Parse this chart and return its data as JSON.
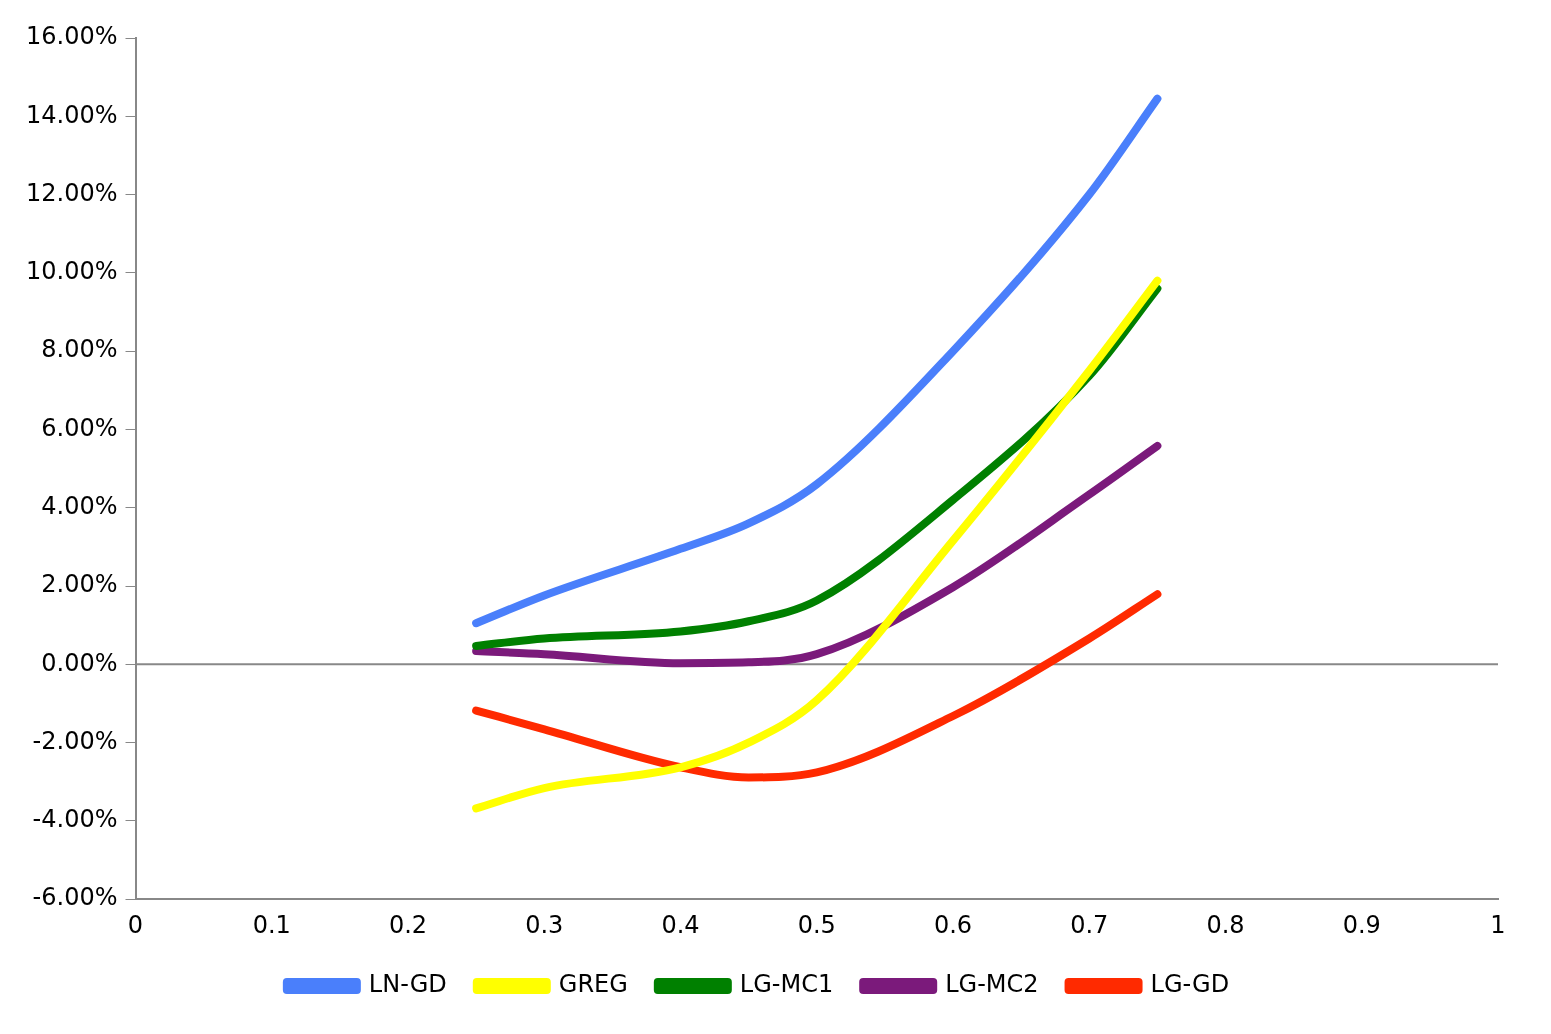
{
  "chart_data": {
    "type": "line",
    "x": [
      0.25,
      0.3,
      0.4,
      0.45,
      0.5,
      0.6,
      0.7,
      0.75
    ],
    "series": [
      {
        "name": "LN-GD",
        "color": "#4a7ffb",
        "values": [
          1.05,
          1.76,
          2.95,
          3.6,
          4.6,
          8.0,
          12.0,
          14.45
        ]
      },
      {
        "name": "GREG",
        "color": "#ffff00",
        "values": [
          -3.68,
          -3.16,
          -2.63,
          -2.0,
          -0.92,
          3.16,
          7.5,
          9.8
        ]
      },
      {
        "name": "LG-MC1",
        "color": "#008000",
        "values": [
          0.47,
          0.66,
          0.84,
          1.1,
          1.63,
          4.2,
          7.37,
          9.6
        ]
      },
      {
        "name": "LG-MC2",
        "color": "#7b1a7b",
        "values": [
          0.34,
          0.26,
          0.03,
          0.05,
          0.26,
          1.97,
          4.34,
          5.58
        ]
      },
      {
        "name": "LG-GD",
        "color": "#ff2a00",
        "values": [
          -1.18,
          -1.66,
          -2.63,
          -2.89,
          -2.76,
          -1.32,
          0.66,
          1.79
        ]
      }
    ],
    "xlim": [
      0,
      1
    ],
    "xticks": [
      0,
      0.1,
      0.2,
      0.3,
      0.4,
      0.5,
      0.6,
      0.7,
      0.8,
      0.9,
      1
    ],
    "ylim": [
      -6,
      16
    ],
    "yticks": [
      {
        "value": -6,
        "label": "-6.00%"
      },
      {
        "value": -4,
        "label": "-4.00%"
      },
      {
        "value": -2,
        "label": "-2.00%"
      },
      {
        "value": 0,
        "label": "0.00%"
      },
      {
        "value": 2,
        "label": "2.00%"
      },
      {
        "value": 4,
        "label": "4.00%"
      },
      {
        "value": 6,
        "label": "6.00%"
      },
      {
        "value": 8,
        "label": "8.00%"
      },
      {
        "value": 10,
        "label": "10.00%"
      },
      {
        "value": 12,
        "label": "12.00%"
      },
      {
        "value": 14,
        "label": "14.00%"
      },
      {
        "value": 16,
        "label": "16.00%"
      }
    ],
    "ref_lines": [
      {
        "axis": "y",
        "value": 0,
        "color": "#888888"
      }
    ],
    "grid": false,
    "legend": "bottom",
    "marker": "none",
    "line_style": "solid"
  }
}
